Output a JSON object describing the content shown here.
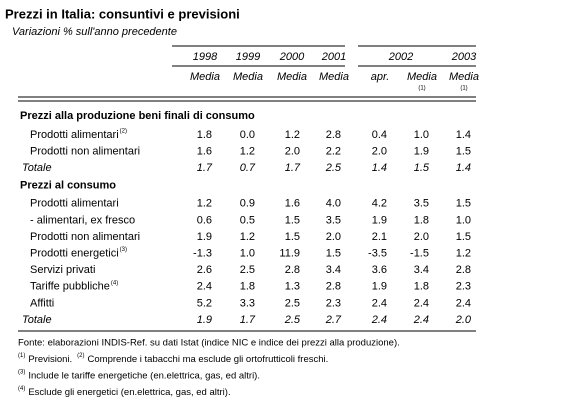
{
  "title": "Prezzi in Italia: consuntivi e previsioni",
  "subtitle": "Variazioni % sull'anno precedente",
  "header": {
    "years": [
      "1998",
      "1999",
      "2000",
      "2001",
      "2002",
      "2003"
    ],
    "columns": [
      {
        "label": "Media"
      },
      {
        "label": "Media"
      },
      {
        "label": "Media"
      },
      {
        "label": "Media"
      },
      {
        "label": "apr."
      },
      {
        "label": "Media",
        "note": "(1)"
      },
      {
        "label": "Media",
        "note": "(1)"
      }
    ]
  },
  "sections": [
    {
      "title": "Prezzi alla produzione beni finali di consumo",
      "rows": [
        {
          "label": "Prodotti alimentari",
          "note": "(2)",
          "values": [
            "1.8",
            "0.0",
            "1.2",
            "2.8",
            "0.4",
            "1.0",
            "1.4"
          ]
        },
        {
          "label": "Prodotti non alimentari",
          "values": [
            "1.6",
            "1.2",
            "2.0",
            "2.2",
            "2.0",
            "1.9",
            "1.5"
          ]
        },
        {
          "label": "Totale",
          "total": true,
          "values": [
            "1.7",
            "0.7",
            "1.7",
            "2.5",
            "1.4",
            "1.5",
            "1.4"
          ]
        }
      ]
    },
    {
      "title": "Prezzi al consumo",
      "rows": [
        {
          "label": "Prodotti alimentari",
          "values": [
            "1.2",
            "0.9",
            "1.6",
            "4.0",
            "4.2",
            "3.5",
            "1.5"
          ]
        },
        {
          "label": "- alimentari, ex fresco",
          "values": [
            "0.6",
            "0.5",
            "1.5",
            "3.5",
            "1.9",
            "1.8",
            "1.0"
          ]
        },
        {
          "label": "Prodotti non alimentari",
          "values": [
            "1.9",
            "1.2",
            "1.5",
            "2.0",
            "2.1",
            "2.0",
            "1.5"
          ]
        },
        {
          "label": "Prodotti energetici",
          "note": "(3)",
          "values": [
            "-1.3",
            "1.0",
            "11.9",
            "1.5",
            "-3.5",
            "-1.5",
            "1.2"
          ]
        },
        {
          "label": "Servizi privati",
          "values": [
            "2.6",
            "2.5",
            "2.8",
            "3.4",
            "3.6",
            "3.4",
            "2.8"
          ]
        },
        {
          "label": "Tariffe pubbliche",
          "note": "(4)",
          "values": [
            "2.4",
            "1.8",
            "1.3",
            "2.8",
            "1.9",
            "1.8",
            "2.3"
          ]
        },
        {
          "label": "Affitti",
          "values": [
            "5.2",
            "3.3",
            "2.5",
            "2.3",
            "2.4",
            "2.4",
            "2.4"
          ]
        },
        {
          "label": "Totale",
          "total": true,
          "values": [
            "1.9",
            "1.7",
            "2.5",
            "2.7",
            "2.4",
            "2.4",
            "2.0"
          ]
        }
      ]
    }
  ],
  "footnotes": [
    [
      {
        "text": "Fonte: elaborazioni INDIS-Ref. su dati Istat (indice NIC e indice dei prezzi alla produzione)."
      }
    ],
    [
      {
        "marker": "(1)",
        "text": "Previsioni."
      },
      {
        "marker": "(2)",
        "text": "Comprende i tabacchi ma esclude gli ortofrutticoli freschi."
      }
    ],
    [
      {
        "marker": "(3)",
        "text": "Include le tariffe energetiche (en.elettrica, gas, ed altri)."
      }
    ],
    [
      {
        "marker": "(4)",
        "text": "Esclude gli energetici (en.elettrica, gas, ed altri)."
      }
    ]
  ]
}
